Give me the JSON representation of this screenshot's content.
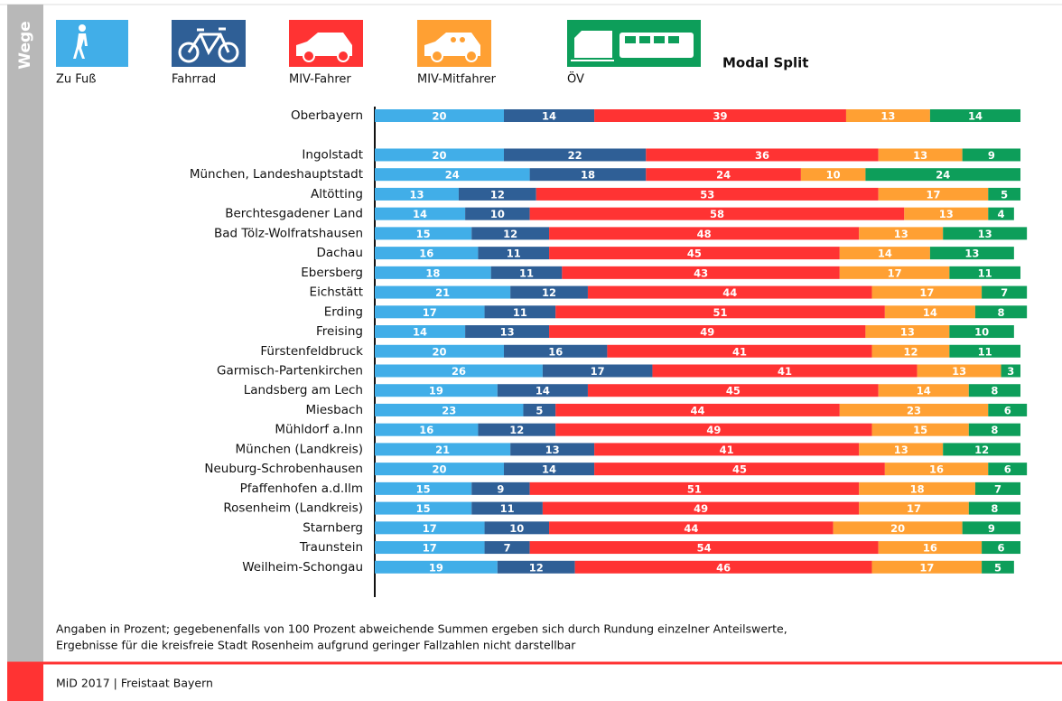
{
  "chart_data": {
    "type": "stacked-barh",
    "side_label": "Wege",
    "title": "Modal Split",
    "categories": [
      "Oberbayern",
      null,
      "Ingolstadt",
      "München, Landeshauptstadt",
      "Altötting",
      "Berchtesgadener Land",
      "Bad Tölz-Wolfratshausen",
      "Dachau",
      "Ebersberg",
      "Eichstätt",
      "Erding",
      "Freising",
      "Fürstenfeldbruck",
      "Garmisch-Partenkirchen",
      "Landsberg am Lech",
      "Miesbach",
      "Mühldorf a.Inn",
      "München (Landkreis)",
      "Neuburg-Schrobenhausen",
      "Pfaffenhofen a.d.Ilm",
      "Rosenheim (Landkreis)",
      "Starnberg",
      "Traunstein",
      "Weilheim-Schongau"
    ],
    "xlim": [
      0,
      100
    ],
    "series": [
      {
        "name": "Zu Fuß",
        "color": "#41aee8",
        "values": [
          20,
          null,
          20,
          24,
          13,
          14,
          15,
          16,
          18,
          21,
          17,
          14,
          20,
          26,
          19,
          23,
          16,
          21,
          20,
          15,
          15,
          17,
          17,
          19
        ]
      },
      {
        "name": "Fahrrad",
        "color": "#2f5f96",
        "values": [
          14,
          null,
          22,
          18,
          12,
          10,
          12,
          11,
          11,
          12,
          11,
          13,
          16,
          17,
          14,
          5,
          12,
          13,
          14,
          9,
          11,
          10,
          7,
          12
        ]
      },
      {
        "name": "MIV-Fahrer",
        "color": "#ff3333",
        "values": [
          39,
          null,
          36,
          24,
          53,
          58,
          48,
          45,
          43,
          44,
          51,
          49,
          41,
          41,
          45,
          44,
          49,
          41,
          45,
          51,
          49,
          44,
          54,
          46
        ]
      },
      {
        "name": "MIV-Mitfahrer",
        "color": "#ffa033",
        "values": [
          13,
          null,
          13,
          10,
          17,
          13,
          13,
          14,
          17,
          17,
          14,
          13,
          12,
          13,
          14,
          23,
          15,
          13,
          16,
          18,
          17,
          20,
          16,
          17
        ]
      },
      {
        "name": "ÖV",
        "color": "#0d9e5a",
        "values": [
          14,
          null,
          9,
          24,
          5,
          4,
          13,
          13,
          11,
          7,
          8,
          10,
          11,
          3,
          8,
          6,
          8,
          12,
          6,
          7,
          8,
          9,
          6,
          5
        ]
      }
    ],
    "footnote": [
      "Angaben in Prozent; gegebenenfalls von 100 Prozent abweichende Summen ergeben sich durch Rundung einzelner Anteilswerte,",
      "Ergebnisse für die kreisfreie Stadt Rosenheim aufgrund geringer Fallzahlen nicht darstellbar"
    ],
    "source": "MiD 2017 | Freistaat Bayern"
  }
}
